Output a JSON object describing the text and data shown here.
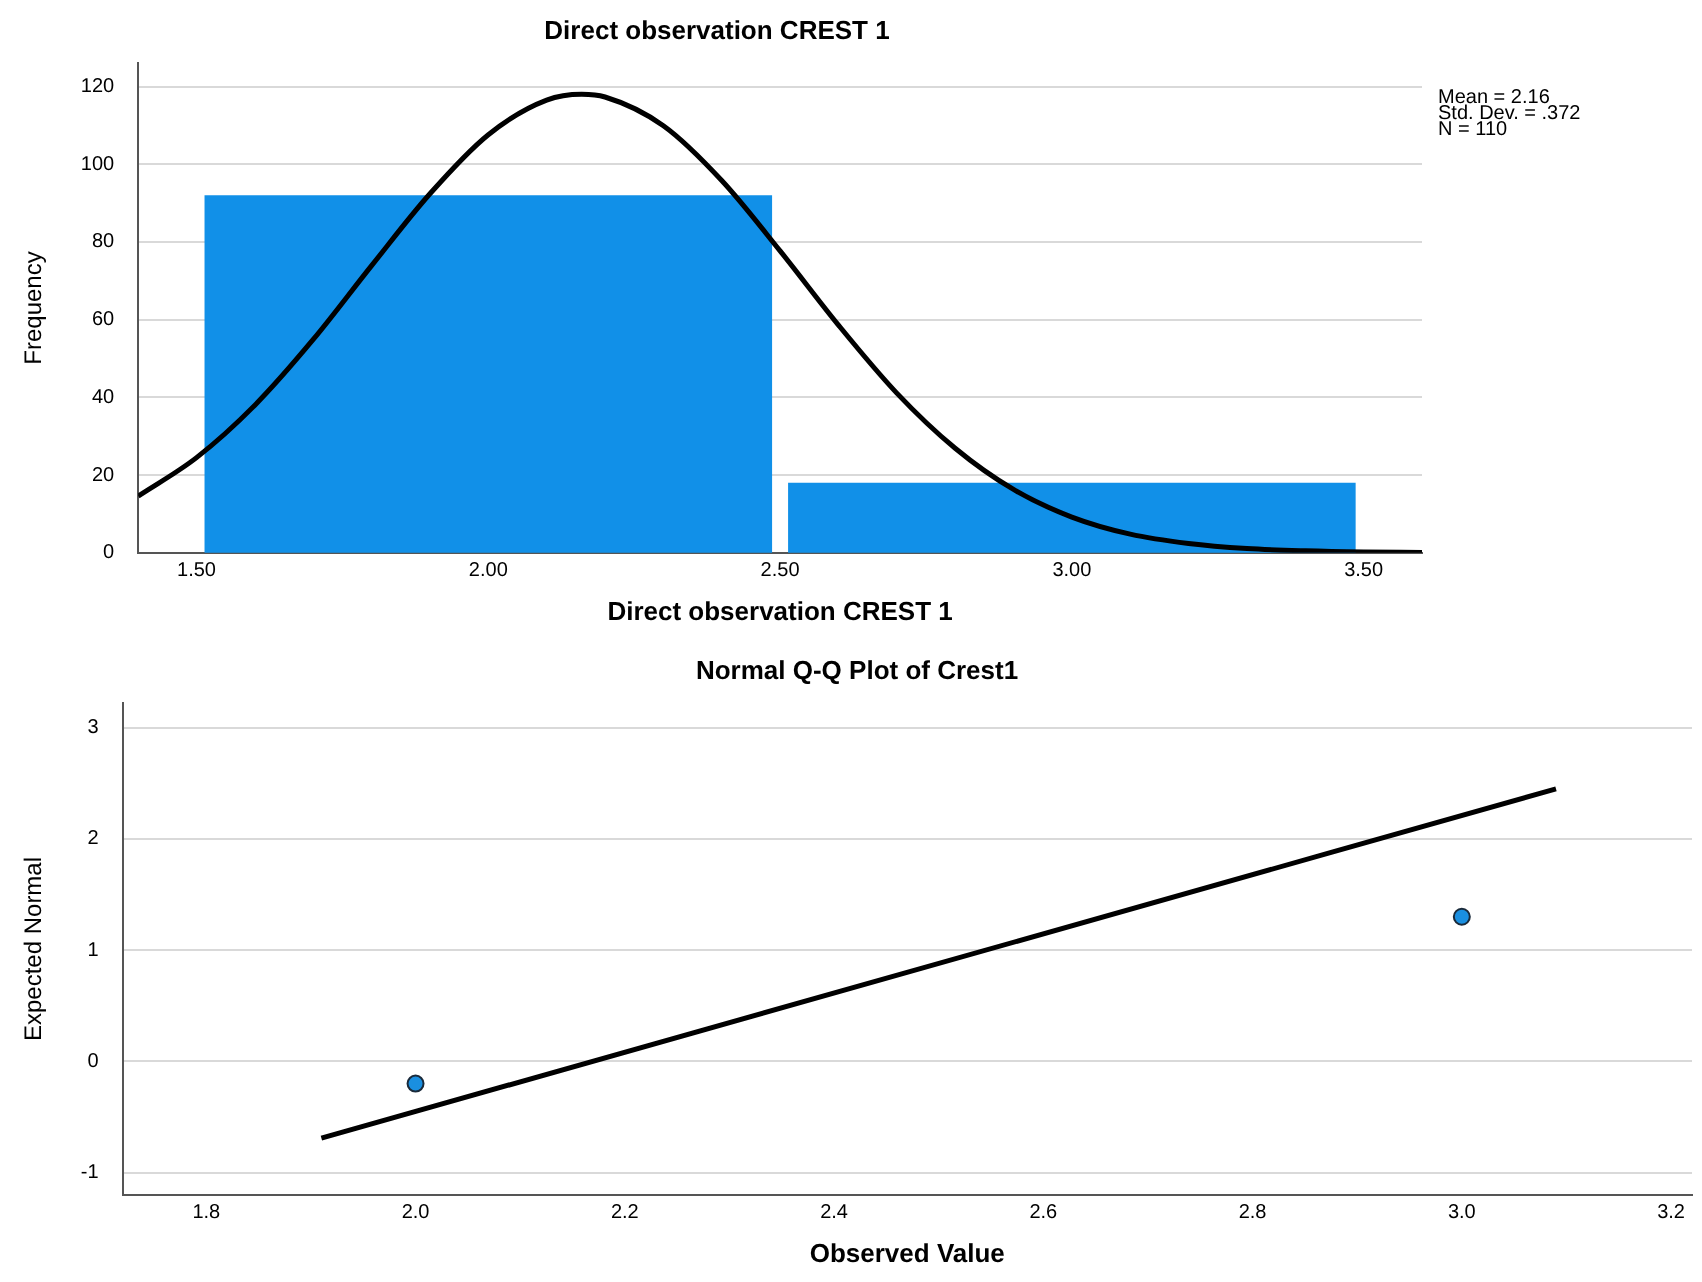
{
  "chart_data": [
    {
      "type": "histogram",
      "title": "Direct observation CREST 1",
      "xlabel": "Direct observation CREST 1",
      "ylabel": "Frequency",
      "bins": [
        1.5,
        2.5,
        3.5
      ],
      "series": [
        {
          "color": "#1190e8",
          "values": [
            92,
            18
          ]
        },
        {
          "type": "line",
          "color": "#000000",
          "marker": "none",
          "x": [
            1.4,
            1.5,
            1.6,
            1.7,
            1.8,
            1.9,
            2.0,
            2.1,
            2.16,
            2.2,
            2.3,
            2.4,
            2.5,
            2.6,
            2.7,
            2.8,
            2.9,
            3.0,
            3.1,
            3.2,
            3.3,
            3.4,
            3.5,
            3.6
          ],
          "values": [
            14.6,
            24.5,
            38.0,
            54.9,
            73.9,
            92.4,
            107.6,
            116.5,
            118,
            117.3,
            109.9,
            95.8,
            77.7,
            58.6,
            41.1,
            26.9,
            16.3,
            9.2,
            4.8,
            2.4,
            1.1,
            0.5,
            0.2,
            0.1
          ]
        }
      ],
      "xlim": [
        1.4,
        3.6
      ],
      "xticks": [
        {
          "value": 1.5,
          "label": "1.50"
        },
        {
          "value": 2,
          "label": "2.00"
        },
        {
          "value": 2.5,
          "label": "2.50"
        },
        {
          "value": 3,
          "label": "3.00"
        },
        {
          "value": 3.5,
          "label": "3.50"
        }
      ],
      "ylim": [
        0,
        126
      ],
      "yticks": [
        0,
        20,
        40,
        60,
        80,
        100,
        120
      ],
      "grid": "y",
      "legend": false,
      "line_style": "solid",
      "annotations": [
        "Mean = 2.16",
        "Std. Dev. = .372",
        "N = 110"
      ]
    },
    {
      "type": "scatter",
      "title": "Normal Q-Q Plot of Crest1",
      "xlabel": "Observed Value",
      "ylabel": "Expected Normal",
      "series": [
        {
          "color": "#1a8fe0",
          "marker": "circle",
          "x": [
            2.0,
            3.0
          ],
          "values": [
            -0.2,
            1.3
          ]
        },
        {
          "type": "line",
          "color": "#000000",
          "marker": "none",
          "x": [
            1.91,
            3.09
          ],
          "values": [
            -0.69,
            2.45
          ]
        }
      ],
      "xlim": [
        1.72,
        3.22
      ],
      "xticks": [
        1.8,
        {
          "value": 2,
          "label": "2.0"
        },
        2.2,
        2.4,
        2.6,
        2.8,
        {
          "value": 3,
          "label": "3.0"
        },
        3.2
      ],
      "ylim": [
        -1.2,
        3.22
      ],
      "yticks": [
        -1,
        0,
        1,
        2,
        3
      ],
      "grid": "y",
      "legend": false
    }
  ]
}
